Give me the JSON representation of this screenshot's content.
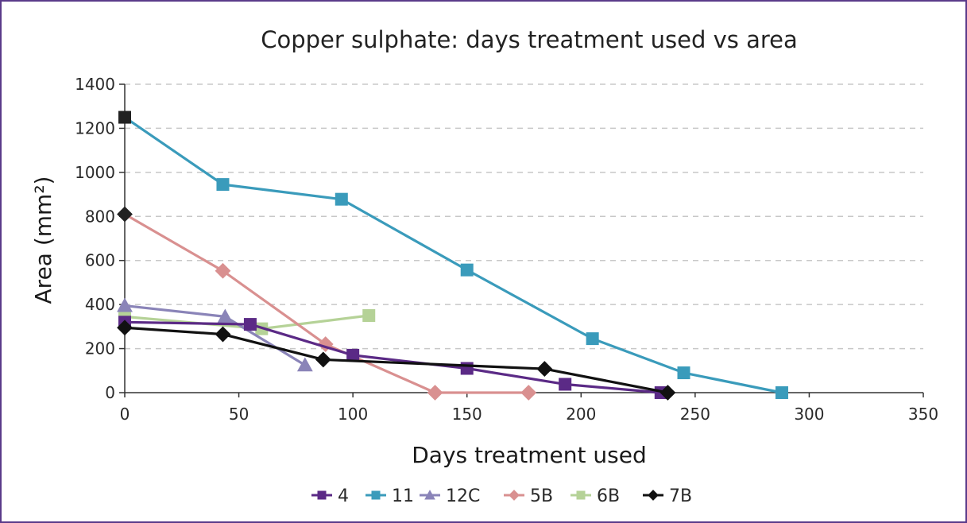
{
  "chart_data": {
    "type": "line",
    "title": "Copper sulphate: days treatment used vs area",
    "xlabel": "Days treatment used",
    "ylabel": "Area (mm²)",
    "xlim": [
      0,
      350
    ],
    "ylim": [
      0,
      1400
    ],
    "x_ticks": [
      0,
      50,
      100,
      150,
      200,
      250,
      300,
      350
    ],
    "y_ticks": [
      0,
      200,
      400,
      600,
      800,
      1000,
      1200,
      1400
    ],
    "grid": "horizontal dashed",
    "legend_position": "bottom",
    "series": [
      {
        "name": "4",
        "color": "#5b2a86",
        "marker": "square",
        "points": [
          [
            0,
            320
          ],
          [
            55,
            310
          ],
          [
            100,
            170
          ],
          [
            150,
            110
          ],
          [
            193,
            38
          ],
          [
            235,
            0
          ]
        ]
      },
      {
        "name": "11",
        "color": "#3a9bbb",
        "marker": "square",
        "points": [
          [
            0,
            1250
          ],
          [
            43,
            945
          ],
          [
            95,
            878
          ],
          [
            150,
            557
          ],
          [
            205,
            245
          ],
          [
            245,
            90
          ],
          [
            288,
            0
          ]
        ]
      },
      {
        "name": "12C",
        "color": "#8a84b8",
        "marker": "triangle",
        "points": [
          [
            0,
            395
          ],
          [
            44,
            345
          ],
          [
            79,
            125
          ]
        ]
      },
      {
        "name": "5B",
        "color": "#d99090",
        "marker": "diamond",
        "points": [
          [
            0,
            810
          ],
          [
            43,
            553
          ],
          [
            88,
            220
          ],
          [
            136,
            0
          ],
          [
            177,
            0
          ]
        ]
      },
      {
        "name": "6B",
        "color": "#b5d297",
        "marker": "square",
        "points": [
          [
            0,
            345
          ],
          [
            60,
            290
          ],
          [
            107,
            350
          ]
        ]
      },
      {
        "name": "7B",
        "color": "#111111",
        "marker": "diamond",
        "points": [
          [
            0,
            295
          ],
          [
            43,
            265
          ],
          [
            87,
            150
          ],
          [
            184,
            108
          ],
          [
            238,
            0
          ]
        ]
      }
    ],
    "special_markers": [
      {
        "series": "11",
        "point_index": 0,
        "color": "#222222"
      },
      {
        "series": "5B",
        "point_index": 0,
        "color": "#222222"
      },
      {
        "series": "4",
        "point_index": 5,
        "color": "#5b2a86"
      }
    ]
  }
}
